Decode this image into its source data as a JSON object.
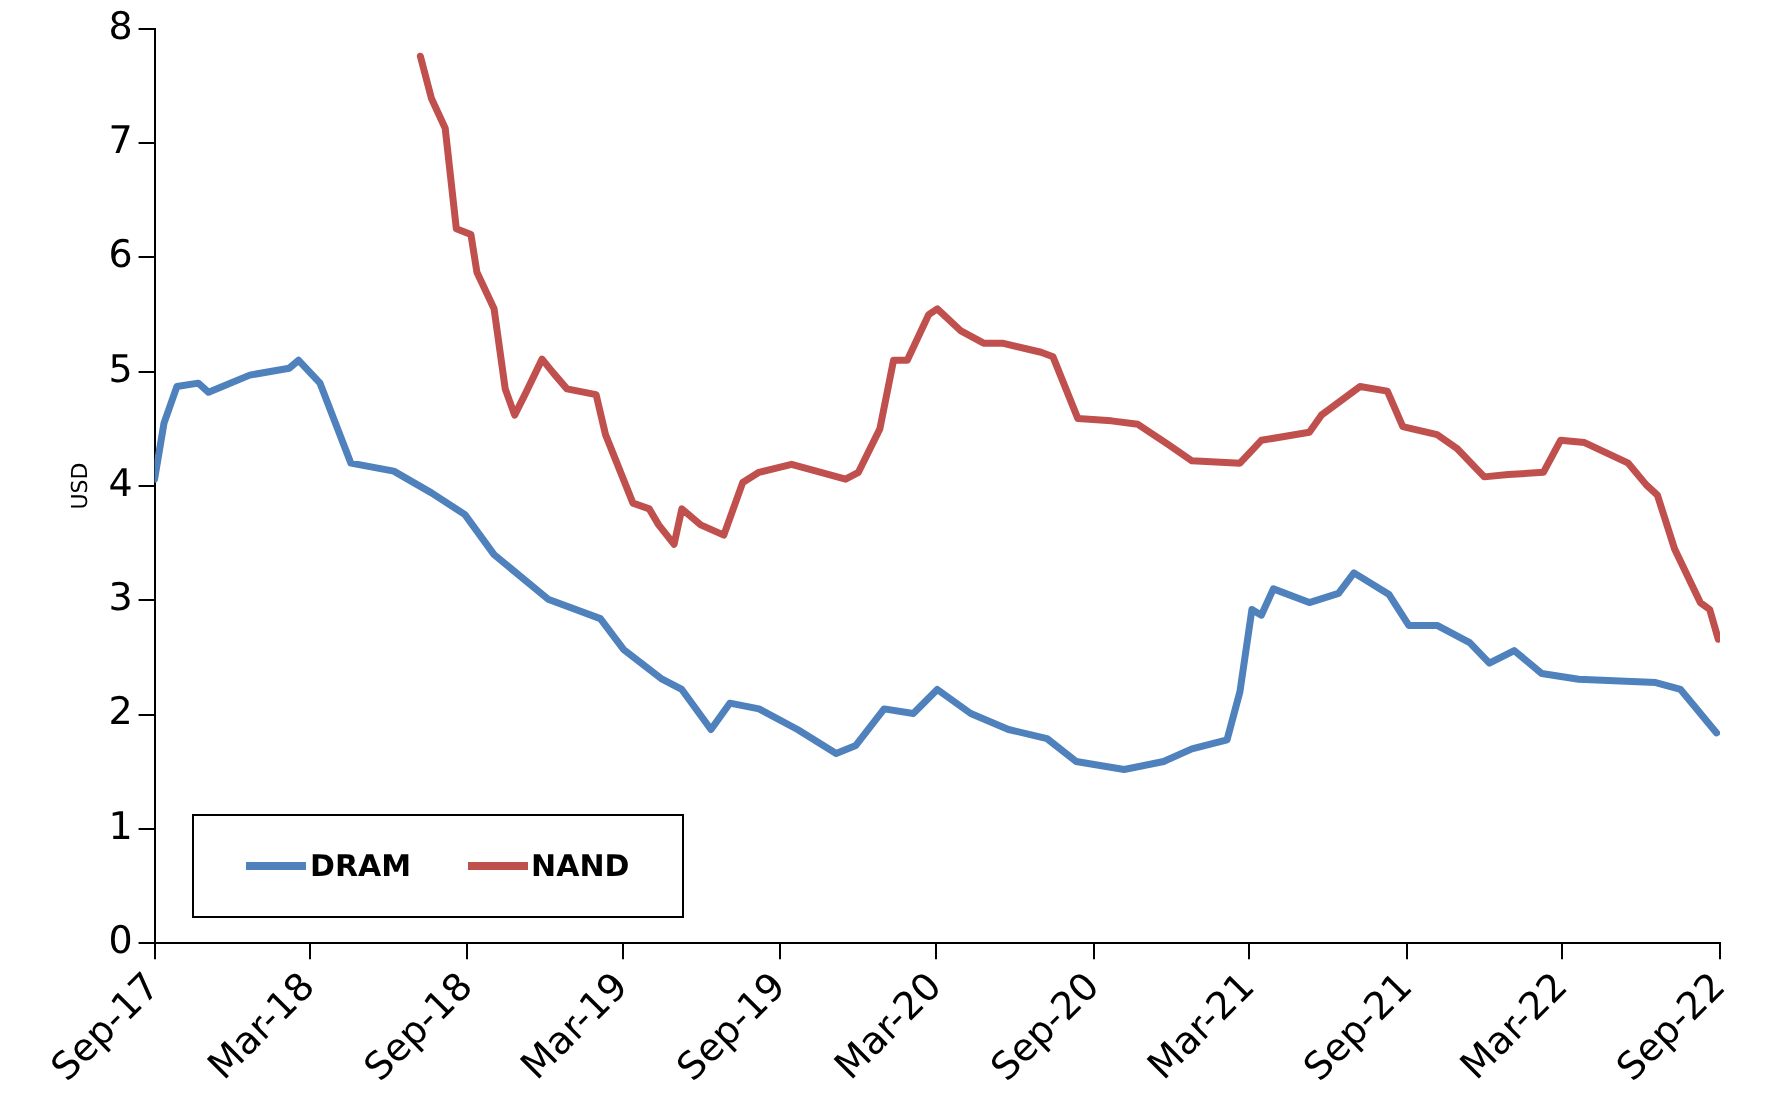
{
  "chart_data": {
    "type": "line",
    "ylabel": "USD",
    "ylim": [
      0,
      8
    ],
    "yticks": [
      0,
      1,
      2,
      3,
      4,
      5,
      6,
      7,
      8
    ],
    "xlim": [
      "2017-09",
      "2022-09"
    ],
    "xticks": [
      {
        "value": "2017-09",
        "label": "Sep-17"
      },
      {
        "value": "2018-03",
        "label": "Mar-18"
      },
      {
        "value": "2018-09",
        "label": "Sep-18"
      },
      {
        "value": "2019-03",
        "label": "Mar-19"
      },
      {
        "value": "2019-09",
        "label": "Sep-19"
      },
      {
        "value": "2020-03",
        "label": "Mar-20"
      },
      {
        "value": "2020-09",
        "label": "Sep-20"
      },
      {
        "value": "2021-03",
        "label": "Mar-21"
      },
      {
        "value": "2021-09",
        "label": "Sep-21"
      },
      {
        "value": "2022-03",
        "label": "Mar-22"
      },
      {
        "value": "2022-09",
        "label": "Sep-22"
      }
    ],
    "grid": false,
    "legend": "bottom left",
    "marker": "none",
    "line_style": "solid",
    "series": [
      {
        "name": "DRAM",
        "color": "#4f81bd",
        "x": [
          "2017-09-01",
          "2017-09-12",
          "2017-09-27",
          "2017-10-22",
          "2017-11-03",
          "2017-12-21",
          "2018-02-05",
          "2018-02-16",
          "2018-03-13",
          "2018-04-18",
          "2018-06-07",
          "2018-07-21",
          "2018-08-29",
          "2018-10-02",
          "2018-12-04",
          "2019-02-03",
          "2019-03-02",
          "2019-04-16",
          "2019-05-09",
          "2019-06-12",
          "2019-07-04",
          "2019-08-07",
          "2019-09-21",
          "2019-11-05",
          "2019-11-28",
          "2019-12-31",
          "2020-02-03",
          "2020-03-02",
          "2020-04-10",
          "2020-05-24",
          "2020-07-08",
          "2020-08-11",
          "2020-10-06",
          "2020-11-21",
          "2020-12-24",
          "2021-02-03",
          "2021-02-18",
          "2021-03-04",
          "2021-03-15",
          "2021-03-29",
          "2021-05-10",
          "2021-06-13",
          "2021-07-01",
          "2021-08-11",
          "2021-09-03",
          "2021-10-06",
          "2021-11-13",
          "2021-12-06",
          "2022-01-04",
          "2022-02-05",
          "2022-03-20",
          "2022-06-18",
          "2022-07-17",
          "2022-08-28"
        ],
        "values": [
          4.06,
          4.55,
          4.87,
          4.9,
          4.82,
          4.97,
          5.03,
          5.1,
          4.9,
          4.2,
          4.13,
          3.94,
          3.75,
          3.4,
          3.01,
          2.84,
          2.57,
          2.31,
          2.22,
          1.87,
          2.1,
          2.05,
          1.87,
          1.66,
          1.73,
          2.05,
          2.01,
          2.22,
          2.01,
          1.87,
          1.79,
          1.59,
          1.52,
          1.59,
          1.7,
          1.78,
          2.2,
          2.92,
          2.87,
          3.1,
          2.98,
          3.06,
          3.24,
          3.05,
          2.78,
          2.78,
          2.63,
          2.45,
          2.56,
          2.36,
          2.31,
          2.28,
          2.22,
          1.84
        ]
      },
      {
        "name": "NAND",
        "color": "#c0504d",
        "x": [
          "2018-07-08",
          "2018-07-21",
          "2018-08-06",
          "2018-08-19",
          "2018-09-05",
          "2018-09-12",
          "2018-10-02",
          "2018-10-15",
          "2018-10-26",
          "2018-11-07",
          "2018-11-27",
          "2018-12-10",
          "2018-12-26",
          "2019-01-29",
          "2019-02-09",
          "2019-03-13",
          "2019-04-01",
          "2019-04-12",
          "2019-04-30",
          "2019-05-09",
          "2019-05-31",
          "2019-06-27",
          "2019-07-19",
          "2019-08-07",
          "2019-09-14",
          "2019-11-16",
          "2019-12-01",
          "2019-12-26",
          "2020-01-11",
          "2020-01-27",
          "2020-02-21",
          "2020-03-02",
          "2020-03-29",
          "2020-04-25",
          "2020-05-17",
          "2020-07-01",
          "2020-07-15",
          "2020-08-13",
          "2020-09-21",
          "2020-10-22",
          "2020-11-27",
          "2020-12-24",
          "2021-02-18",
          "2021-03-15",
          "2021-05-10",
          "2021-05-24",
          "2021-07-08",
          "2021-08-09",
          "2021-08-27",
          "2021-10-06",
          "2021-10-29",
          "2021-11-30",
          "2021-12-28",
          "2022-02-07",
          "2022-02-27",
          "2022-03-27",
          "2022-05-17",
          "2022-06-07",
          "2022-06-20",
          "2022-07-10",
          "2022-08-09",
          "2022-08-20",
          "2022-08-30"
        ],
        "values": [
          7.76,
          7.39,
          7.13,
          6.25,
          6.2,
          5.87,
          5.55,
          4.85,
          4.62,
          4.8,
          5.11,
          4.99,
          4.85,
          4.8,
          4.45,
          3.85,
          3.8,
          3.66,
          3.49,
          3.8,
          3.66,
          3.57,
          4.03,
          4.12,
          4.19,
          4.06,
          4.12,
          4.5,
          5.1,
          5.1,
          5.5,
          5.55,
          5.36,
          5.25,
          5.25,
          5.17,
          5.13,
          4.59,
          4.57,
          4.54,
          4.36,
          4.22,
          4.2,
          4.4,
          4.47,
          4.62,
          4.87,
          4.83,
          4.52,
          4.45,
          4.33,
          4.08,
          4.1,
          4.12,
          4.4,
          4.38,
          4.2,
          4.01,
          3.92,
          3.45,
          2.98,
          2.92,
          2.66
        ]
      }
    ]
  }
}
